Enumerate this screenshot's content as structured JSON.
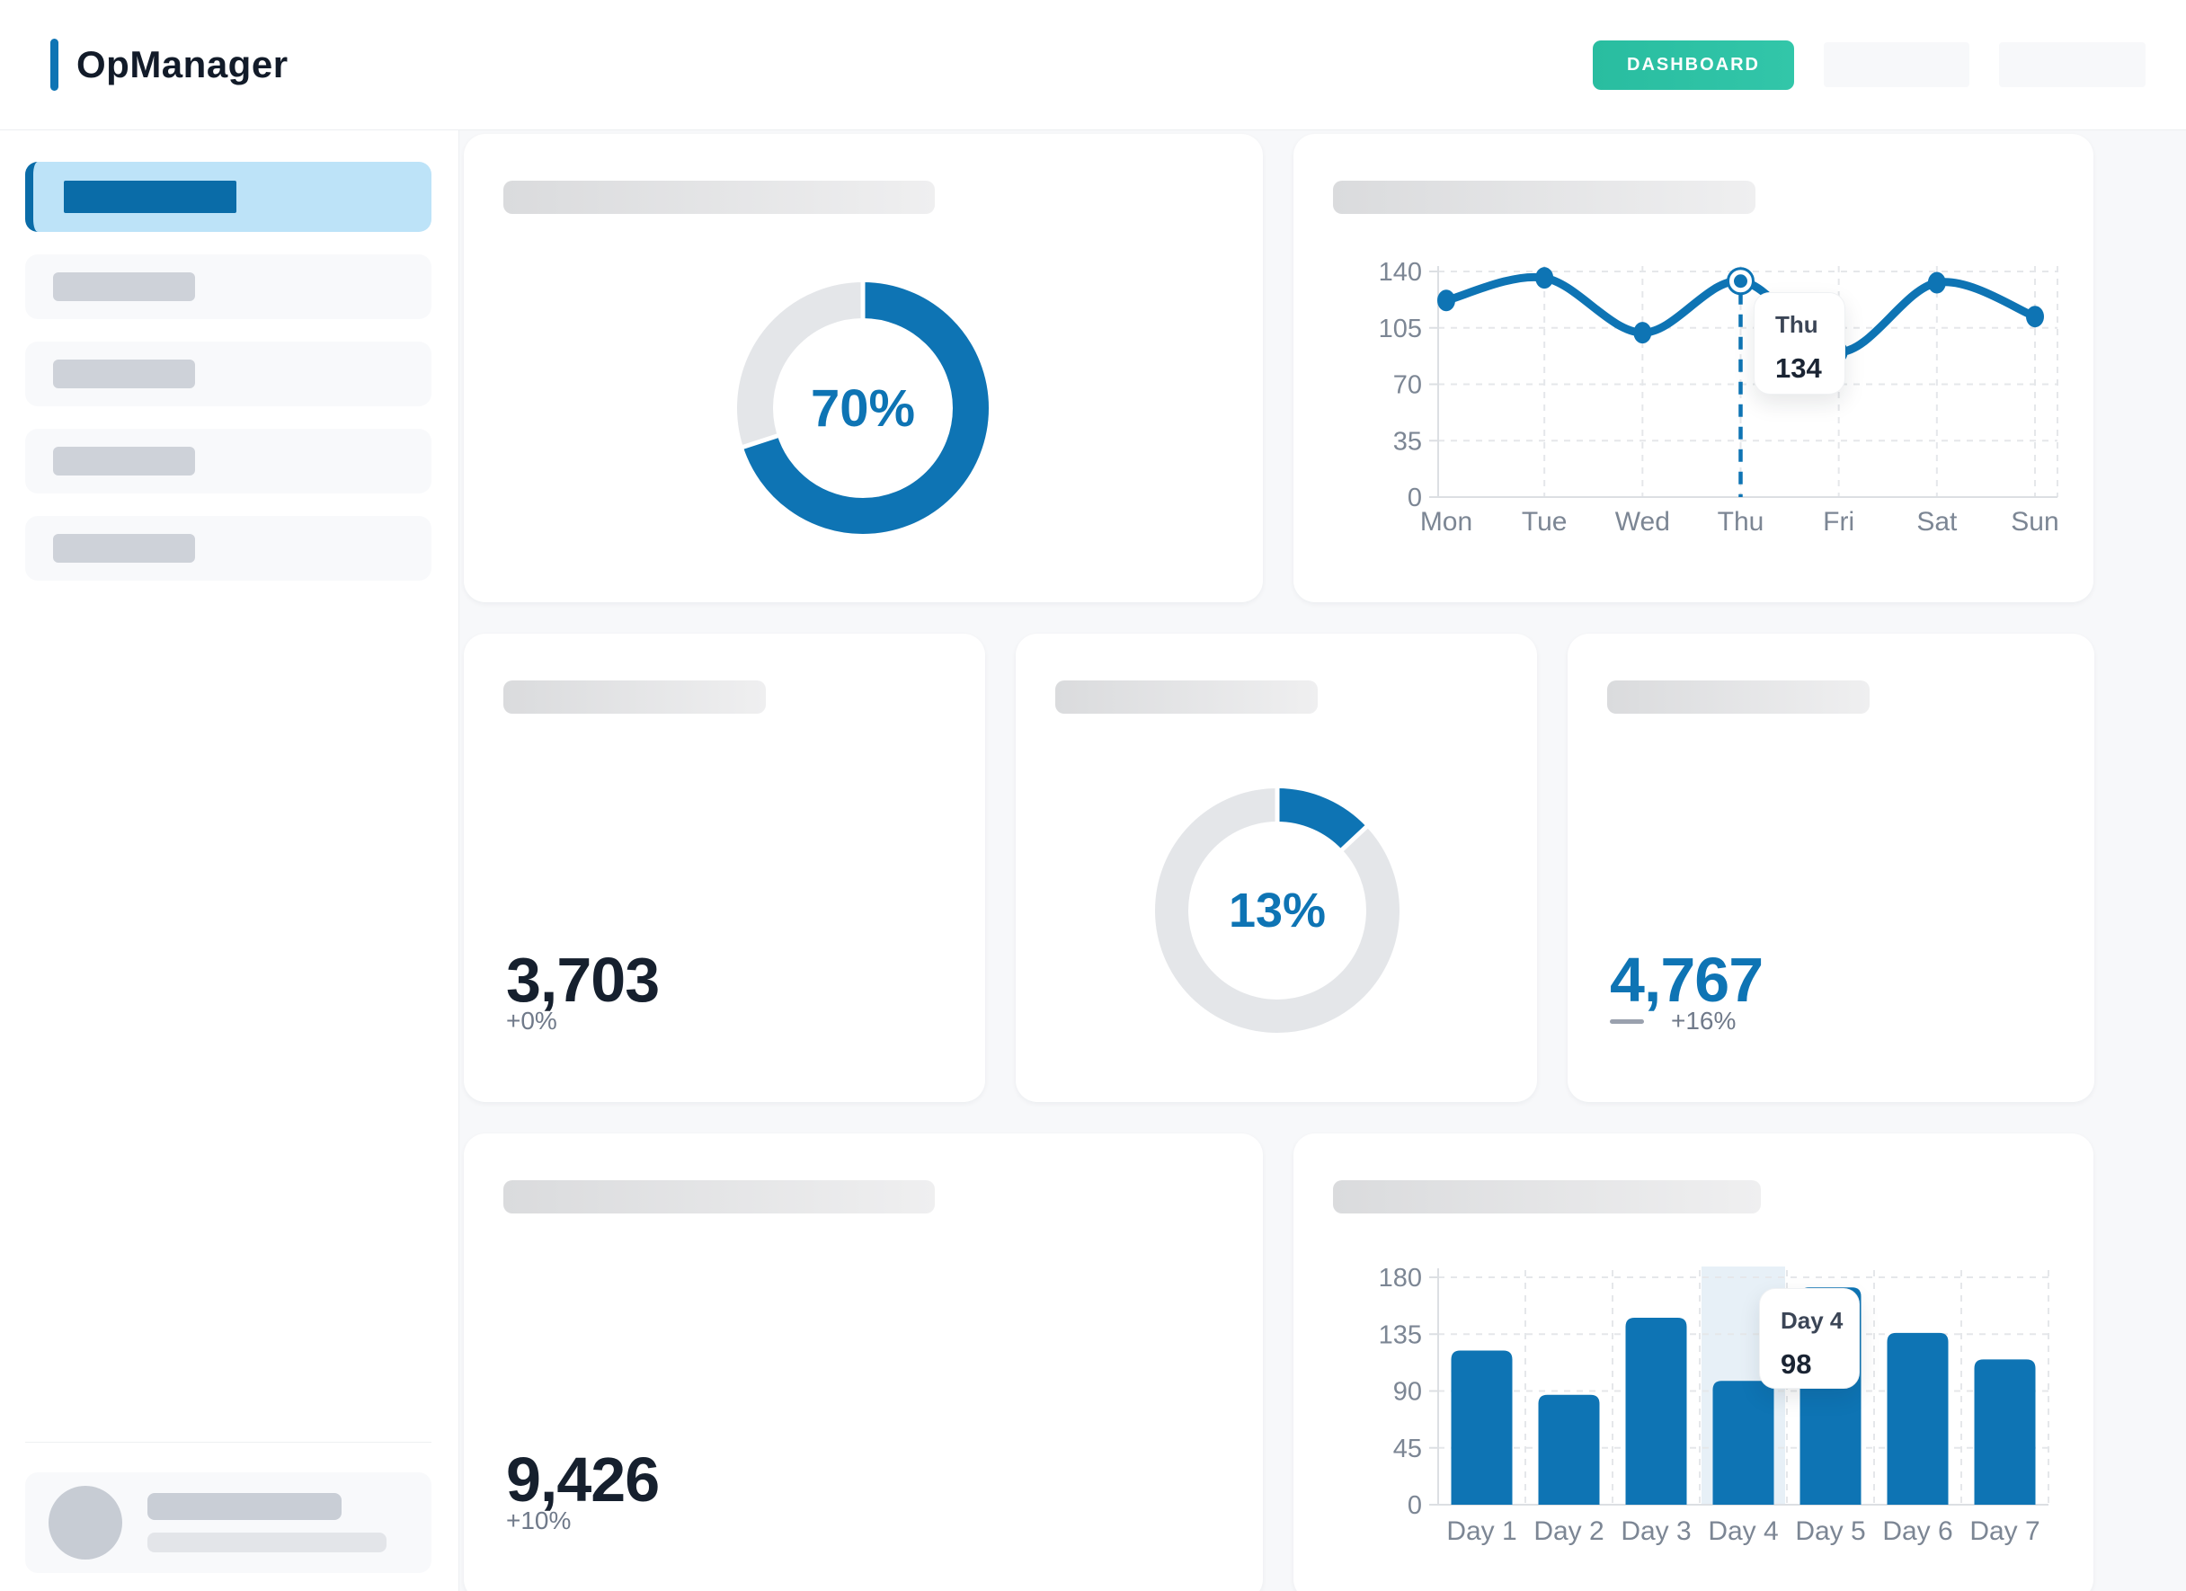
{
  "colors": {
    "accent_blue": "#0E74B4",
    "sidebar_blue": "#0A6CA8",
    "active_item_bg": "#BDE3F8",
    "teal": "#2CBFA3",
    "navy": "#16202E",
    "muted_text": "#707A8A",
    "tick_text": "#7C8694",
    "grid_line": "#E5E7EA",
    "axis_line": "#DCDFE3",
    "donut_track": "#E4E6E9",
    "highlight_band": "#E7F0F7"
  },
  "header": {
    "brand": "OpManager",
    "dashboard_button": "DASHBOARD",
    "placeholder_buttons": 2
  },
  "sidebar": {
    "item_count": 5,
    "active_index": 0
  },
  "cards": {
    "donut_70": {
      "percent": 70,
      "label": "70%"
    },
    "stat_a": {
      "value": "3,703",
      "delta": "+0%"
    },
    "donut_13": {
      "percent": 13,
      "label": "13%"
    },
    "stat_b": {
      "value": "4,767",
      "delta": "+16%"
    },
    "stat_c": {
      "value": "9,426",
      "delta": "+10%"
    },
    "line_week": {
      "tooltip_label": "Thu",
      "tooltip_value": "134"
    },
    "bar_week": {
      "tooltip_label": "Day 4",
      "tooltip_value": "98"
    }
  },
  "chart_data": [
    {
      "id": "line_week",
      "type": "line",
      "x": [
        "Mon",
        "Tue",
        "Wed",
        "Thu",
        "Fri",
        "Sat",
        "Sun"
      ],
      "values": [
        122,
        136,
        102,
        134,
        90,
        133,
        112
      ],
      "yticks": [
        0,
        35,
        70,
        105,
        140
      ],
      "ylim": [
        0,
        140
      ],
      "grid": true,
      "legend": "none",
      "active_index": 3,
      "tooltip": {
        "label": "Thu",
        "value": 134
      }
    },
    {
      "id": "bar_week",
      "type": "bar",
      "categories": [
        "Day 1",
        "Day 2",
        "Day 3",
        "Day 4",
        "Day 5",
        "Day 6",
        "Day 7"
      ],
      "values": [
        122,
        87,
        148,
        98,
        172,
        136,
        115
      ],
      "yticks": [
        0,
        45,
        90,
        135,
        180
      ],
      "ylim": [
        0,
        180
      ],
      "grid": true,
      "legend": "none",
      "highlight_index": 3,
      "tooltip": {
        "label": "Day 4",
        "value": 98
      }
    },
    {
      "id": "donut_70",
      "type": "donut",
      "percent": 70
    },
    {
      "id": "donut_13",
      "type": "donut",
      "percent": 13
    }
  ]
}
